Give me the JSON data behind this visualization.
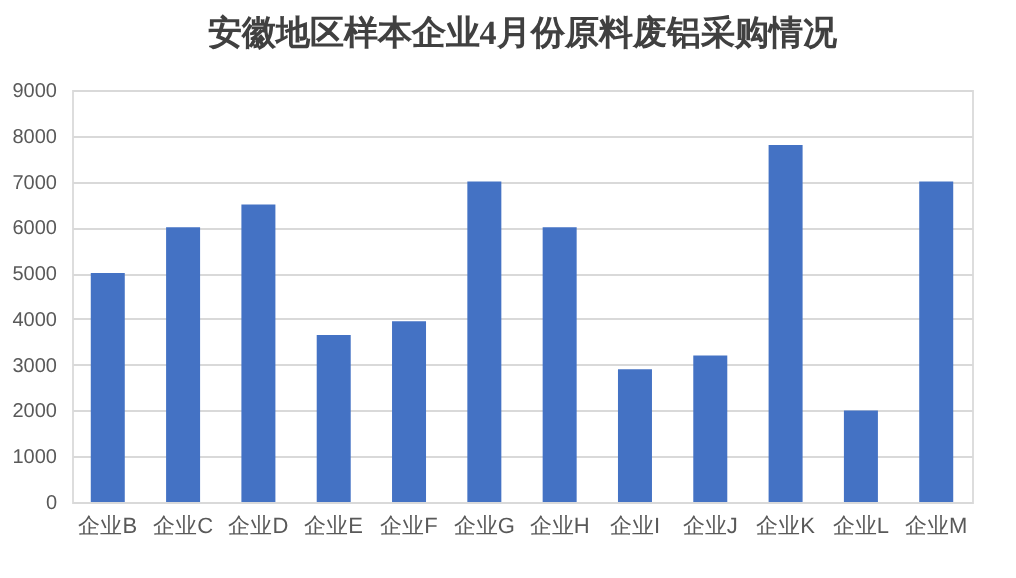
{
  "chart_data": {
    "type": "bar",
    "title": "安徽地区样本企业4月份原料废铝采购情况",
    "categories": [
      "企业B",
      "企业C",
      "企业D",
      "企业E",
      "企业F",
      "企业G",
      "企业H",
      "企业I",
      "企业J",
      "企业K",
      "企业L",
      "企业M"
    ],
    "values": [
      5000,
      6000,
      6500,
      3650,
      3950,
      7000,
      6000,
      2900,
      3200,
      7800,
      2000,
      7000
    ],
    "color": "#4472c4",
    "ylim": [
      0,
      9000
    ],
    "yticks": [
      0,
      1000,
      2000,
      3000,
      4000,
      5000,
      6000,
      7000,
      8000,
      9000
    ],
    "grid": "y"
  }
}
